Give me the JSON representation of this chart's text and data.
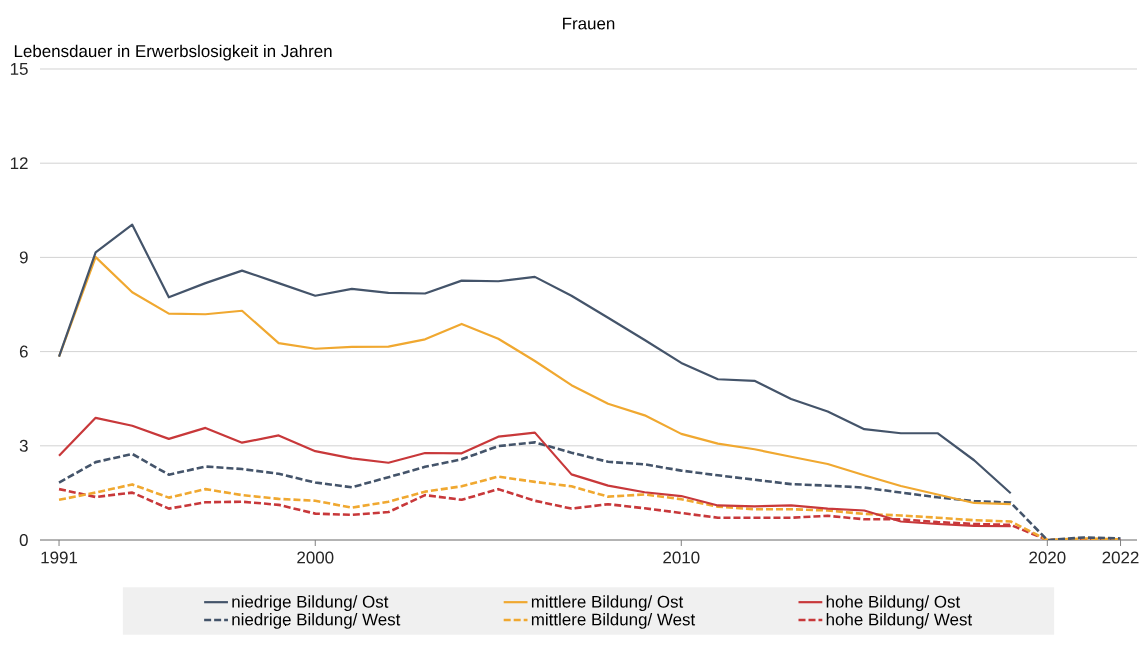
{
  "chart_data": {
    "type": "line",
    "title": "Frauen",
    "ylabel": "Lebensdauer in Erwerbslosigkeit in Jahren",
    "categories": [
      "1991",
      null,
      null,
      null,
      null,
      null,
      null,
      "2000",
      null,
      null,
      null,
      null,
      null,
      null,
      null,
      null,
      null,
      "2010",
      null,
      null,
      null,
      null,
      null,
      null,
      null,
      null,
      null,
      "2020",
      null,
      "2022"
    ],
    "series": [
      {
        "name": "niedrige Bildung/ Ost",
        "color": "#44546a",
        "line_style": "solid",
        "values": [
          5.84,
          9.16,
          10.04,
          7.73,
          8.18,
          8.58,
          8.18,
          7.78,
          8.0,
          7.87,
          7.85,
          8.26,
          8.24,
          8.38,
          7.78,
          7.08,
          6.37,
          5.64,
          5.12,
          5.07,
          4.49,
          4.09,
          3.53,
          3.4,
          3.4,
          2.54,
          1.49,
          null,
          null,
          null
        ]
      },
      {
        "name": "mittlere Bildung/ Ost",
        "color": "#f0a830",
        "line_style": "solid",
        "values": [
          5.84,
          9.01,
          7.89,
          7.21,
          7.19,
          7.3,
          6.27,
          6.09,
          6.15,
          6.16,
          6.39,
          6.88,
          6.41,
          5.7,
          4.93,
          4.34,
          3.97,
          3.38,
          3.07,
          2.89,
          2.65,
          2.42,
          2.06,
          1.72,
          1.45,
          1.18,
          1.14,
          null,
          null,
          null
        ]
      },
      {
        "name": "hohe Bildung/ Ost",
        "color": "#c8383a",
        "line_style": "solid",
        "values": [
          2.68,
          3.89,
          3.64,
          3.22,
          3.57,
          3.1,
          3.33,
          2.83,
          2.6,
          2.46,
          2.77,
          2.76,
          3.29,
          3.42,
          2.09,
          1.73,
          1.52,
          1.4,
          1.1,
          1.07,
          1.1,
          1.0,
          0.94,
          0.59,
          0.51,
          0.45,
          0.44,
          null,
          null,
          null
        ]
      },
      {
        "name": "niedrige Bildung/ West",
        "color": "#44546a",
        "line_style": "dashed",
        "values": [
          1.83,
          2.48,
          2.74,
          2.08,
          2.34,
          2.26,
          2.11,
          1.83,
          1.68,
          2.0,
          2.33,
          2.57,
          2.99,
          3.11,
          2.78,
          2.49,
          2.41,
          2.21,
          2.06,
          1.92,
          1.78,
          1.73,
          1.67,
          1.51,
          1.36,
          1.24,
          1.19,
          0,
          0.08,
          0.05
        ]
      },
      {
        "name": "mittlere Bildung/ West",
        "color": "#f0a830",
        "line_style": "dashed",
        "values": [
          1.28,
          1.51,
          1.77,
          1.35,
          1.62,
          1.43,
          1.31,
          1.25,
          1.03,
          1.22,
          1.54,
          1.71,
          2.02,
          1.85,
          1.71,
          1.38,
          1.45,
          1.3,
          1.06,
          0.98,
          0.98,
          0.94,
          0.83,
          0.78,
          0.71,
          0.63,
          0.59,
          0,
          0.05,
          0.02
        ]
      },
      {
        "name": "hohe Bildung/ West",
        "color": "#c8383a",
        "line_style": "dashed",
        "values": [
          1.62,
          1.37,
          1.51,
          1.0,
          1.2,
          1.22,
          1.12,
          0.84,
          0.8,
          0.89,
          1.43,
          1.28,
          1.62,
          1.25,
          1.0,
          1.14,
          1.01,
          0.86,
          0.71,
          0.71,
          0.71,
          0.77,
          0.66,
          0.66,
          0.57,
          0.51,
          0.48,
          0,
          0,
          0
        ]
      }
    ],
    "ylim": [
      0,
      15
    ],
    "yticks": [
      0,
      3,
      6,
      9,
      12,
      15
    ],
    "grid": "y",
    "legend": "bottom"
  }
}
